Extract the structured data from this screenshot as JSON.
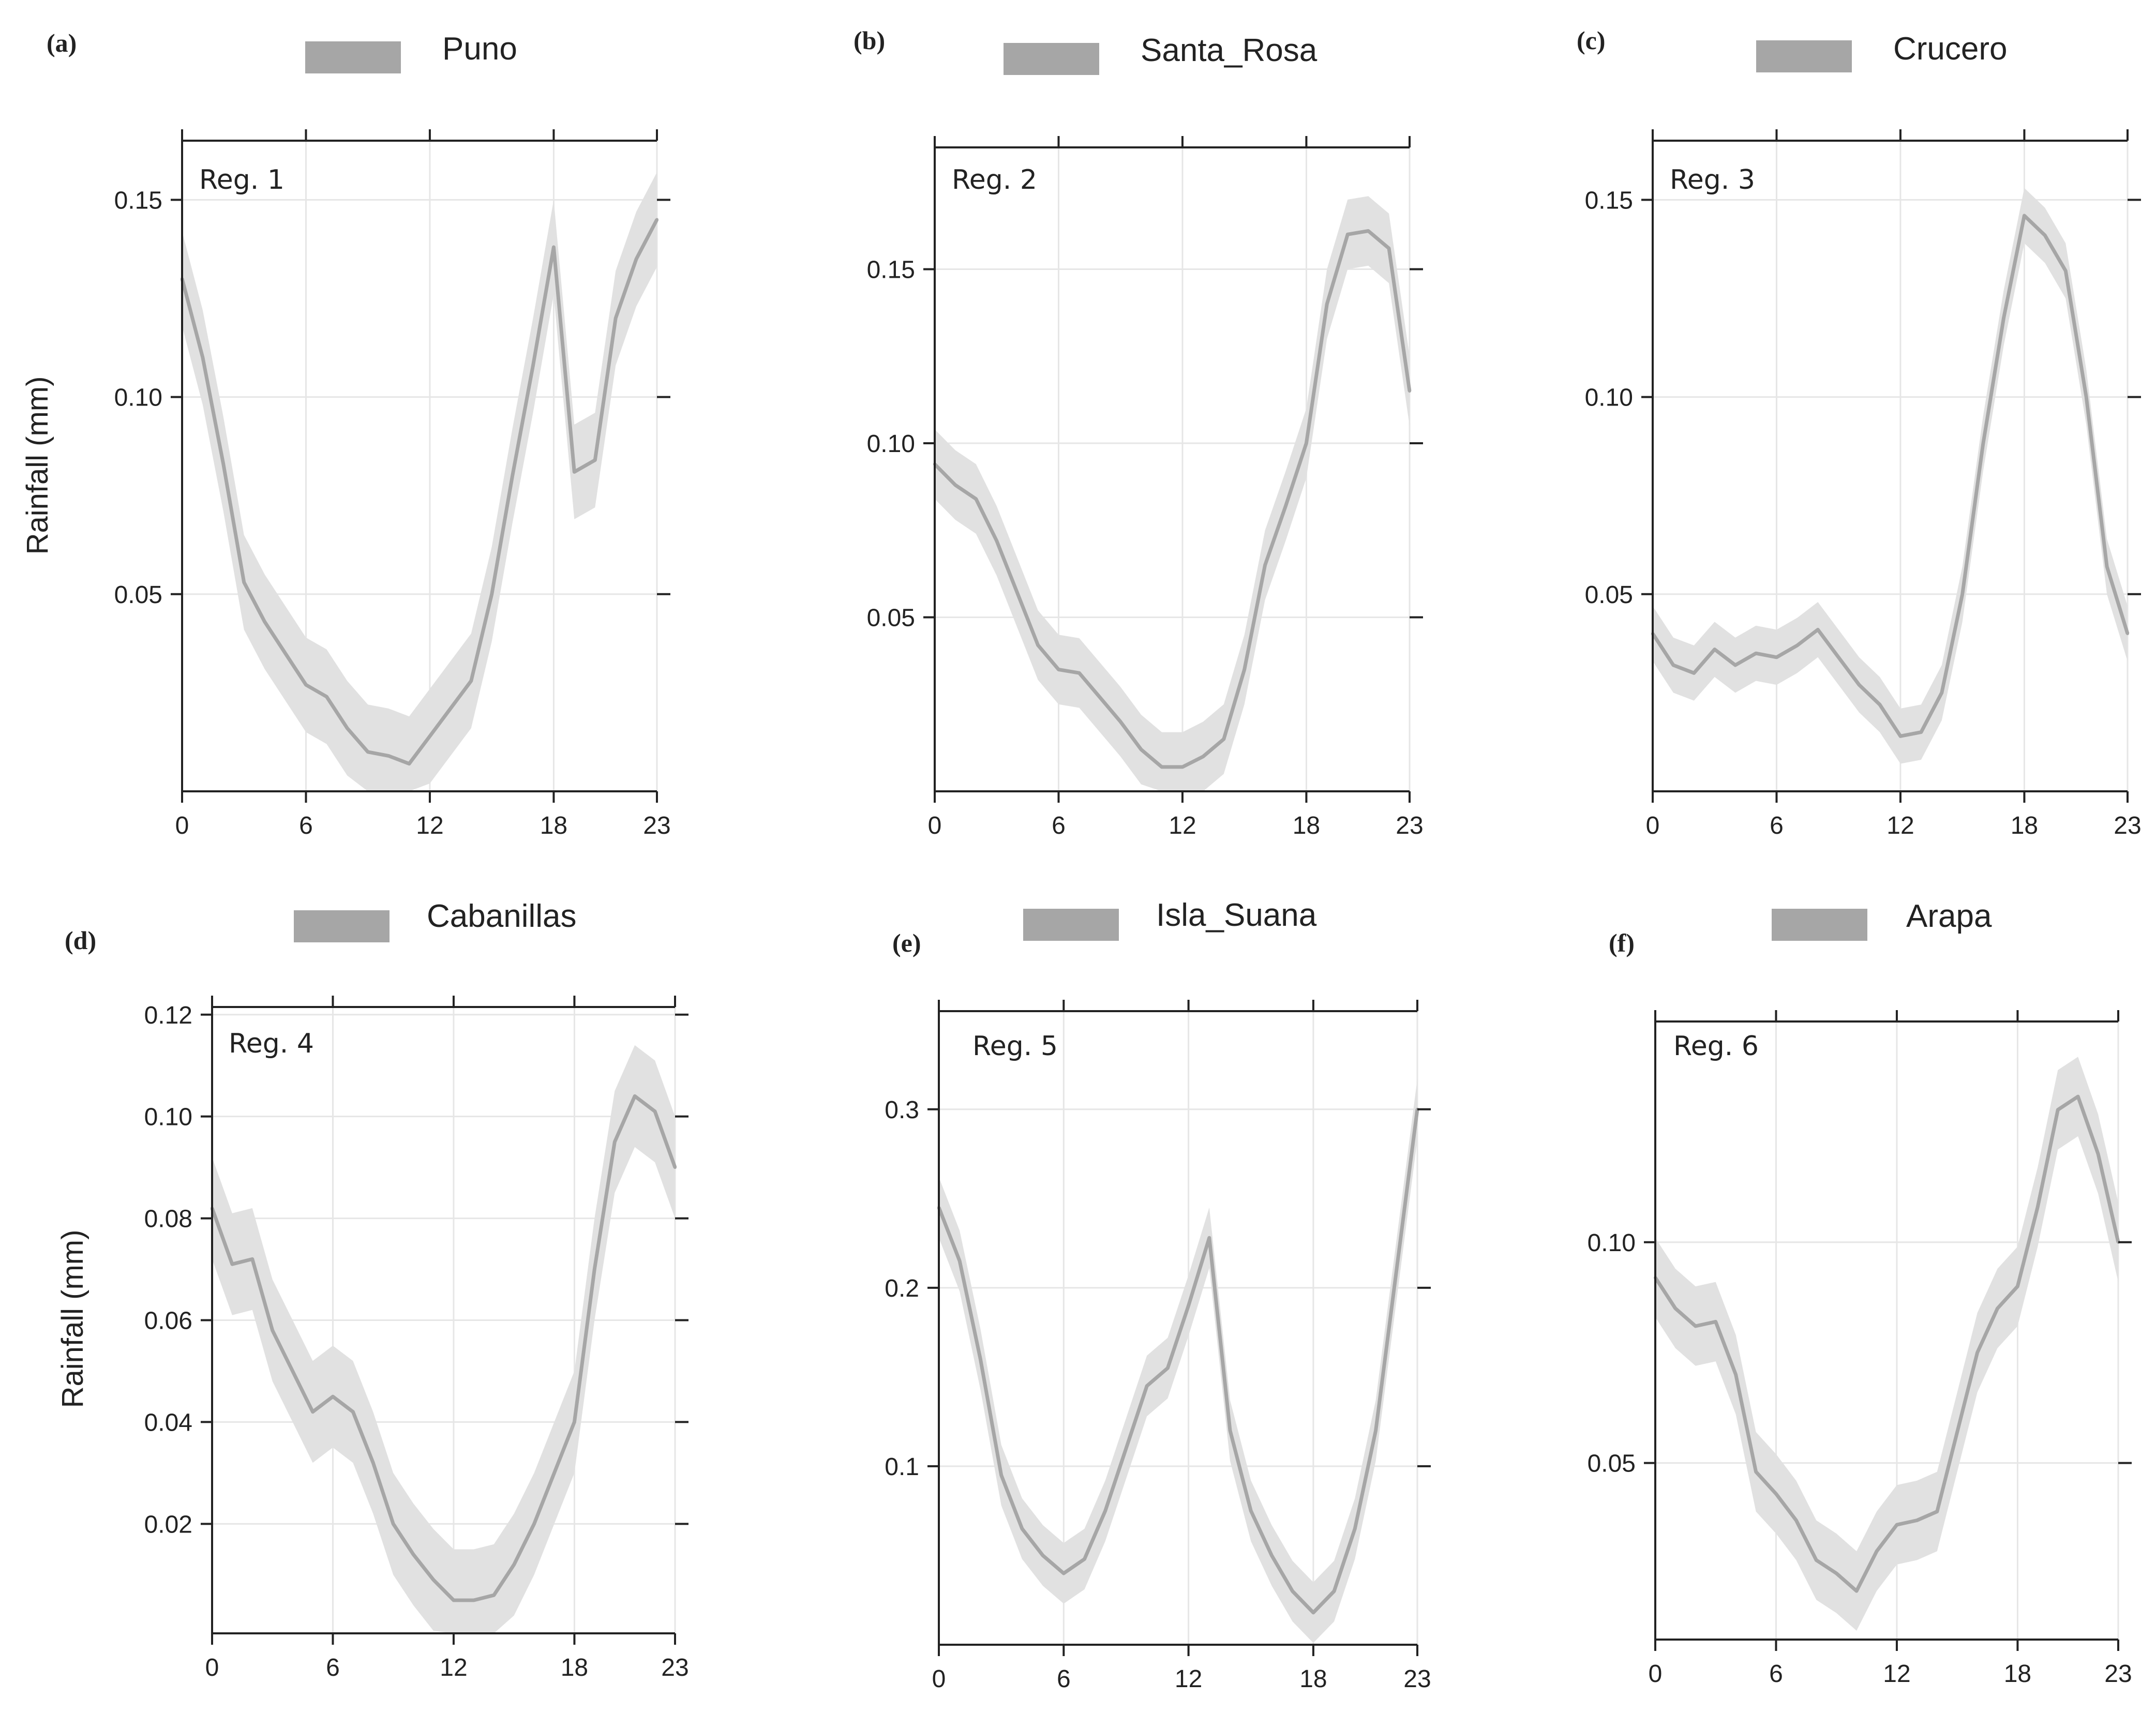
{
  "chart_data": [
    {
      "type": "line",
      "panel": "(a)",
      "legend": "Puno",
      "region_label": "Reg. 1",
      "ylabel": "Rainfall (mm)",
      "xlabel": "",
      "xlim": [
        0,
        23
      ],
      "ylim": [
        0,
        0.165
      ],
      "x_ticks": [
        0,
        6,
        12,
        18,
        23
      ],
      "y_ticks": [
        0.05,
        0.1,
        0.15
      ],
      "y_tick_labels": [
        "0.05",
        "0.10",
        "0.15"
      ],
      "x": [
        0,
        1,
        2,
        3,
        4,
        5,
        6,
        7,
        8,
        9,
        10,
        11,
        12,
        13,
        14,
        15,
        16,
        17,
        18,
        19,
        20,
        21,
        22,
        23
      ],
      "values": [
        0.13,
        0.11,
        0.083,
        0.053,
        0.043,
        0.035,
        0.027,
        0.024,
        0.016,
        0.01,
        0.009,
        0.007,
        0.014,
        0.021,
        0.028,
        0.05,
        0.08,
        0.108,
        0.138,
        0.081,
        0.084,
        0.12,
        0.135,
        0.145
      ],
      "band": 0.012,
      "colors": {
        "line": "#a6a6a6",
        "band": "#e1e1e1"
      }
    },
    {
      "type": "line",
      "panel": "(b)",
      "legend": "Santa_Rosa",
      "region_label": "Reg. 2",
      "ylabel": "",
      "xlabel": "",
      "xlim": [
        0,
        23
      ],
      "ylim": [
        0,
        0.185
      ],
      "x_ticks": [
        0,
        6,
        12,
        18,
        23
      ],
      "y_ticks": [
        0.05,
        0.1,
        0.15
      ],
      "y_tick_labels": [
        "0.05",
        "0.10",
        "0.15"
      ],
      "x": [
        0,
        1,
        2,
        3,
        4,
        5,
        6,
        7,
        8,
        9,
        10,
        11,
        12,
        13,
        14,
        15,
        16,
        17,
        18,
        19,
        20,
        21,
        22,
        23
      ],
      "values": [
        0.094,
        0.088,
        0.084,
        0.072,
        0.057,
        0.042,
        0.035,
        0.034,
        0.027,
        0.02,
        0.012,
        0.007,
        0.007,
        0.01,
        0.015,
        0.035,
        0.065,
        0.082,
        0.1,
        0.14,
        0.16,
        0.161,
        0.156,
        0.115
      ],
      "band": 0.01,
      "colors": {
        "line": "#a6a6a6",
        "band": "#e1e1e1"
      }
    },
    {
      "type": "line",
      "panel": "(c)",
      "legend": "Crucero",
      "region_label": "Reg. 3",
      "ylabel": "",
      "xlabel": "",
      "xlim": [
        0,
        23
      ],
      "ylim": [
        0,
        0.165
      ],
      "x_ticks": [
        0,
        6,
        12,
        18,
        23
      ],
      "y_ticks": [
        0.05,
        0.1,
        0.15
      ],
      "y_tick_labels": [
        "0.05",
        "0.10",
        "0.15"
      ],
      "x": [
        0,
        1,
        2,
        3,
        4,
        5,
        6,
        7,
        8,
        9,
        10,
        11,
        12,
        13,
        14,
        15,
        16,
        17,
        18,
        19,
        20,
        21,
        22,
        23
      ],
      "values": [
        0.04,
        0.032,
        0.03,
        0.036,
        0.032,
        0.035,
        0.034,
        0.037,
        0.041,
        0.034,
        0.027,
        0.022,
        0.014,
        0.015,
        0.025,
        0.05,
        0.088,
        0.12,
        0.146,
        0.141,
        0.132,
        0.1,
        0.057,
        0.04
      ],
      "band": 0.007,
      "colors": {
        "line": "#a6a6a6",
        "band": "#e1e1e1"
      }
    },
    {
      "type": "line",
      "panel": "(d)",
      "legend": "Cabanillas",
      "region_label": "Reg. 4",
      "ylabel": "Rainfall (mm)",
      "xlabel": "",
      "xlim": [
        0,
        23
      ],
      "ylim": [
        -0.0015,
        0.1215
      ],
      "x_ticks": [
        0,
        6,
        12,
        18,
        23
      ],
      "y_ticks": [
        0.02,
        0.04,
        0.06,
        0.08,
        0.1,
        0.12
      ],
      "y_tick_labels": [
        "0.02",
        "0.04",
        "0.06",
        "0.08",
        "0.10",
        "0.12"
      ],
      "x": [
        0,
        1,
        2,
        3,
        4,
        5,
        6,
        7,
        8,
        9,
        10,
        11,
        12,
        13,
        14,
        15,
        16,
        17,
        18,
        19,
        20,
        21,
        22,
        23
      ],
      "values": [
        0.082,
        0.071,
        0.072,
        0.058,
        0.05,
        0.042,
        0.045,
        0.042,
        0.032,
        0.02,
        0.014,
        0.009,
        0.005,
        0.005,
        0.006,
        0.012,
        0.02,
        0.03,
        0.04,
        0.07,
        0.095,
        0.104,
        0.101,
        0.09
      ],
      "band": 0.01,
      "colors": {
        "line": "#a6a6a6",
        "band": "#e1e1e1"
      }
    },
    {
      "type": "line",
      "panel": "(e)",
      "legend": "Isla_Suana",
      "region_label": "Reg. 5",
      "ylabel": "",
      "xlabel": "",
      "xlim": [
        0,
        23
      ],
      "ylim": [
        0,
        0.355
      ],
      "x_ticks": [
        0,
        6,
        12,
        18,
        23
      ],
      "y_ticks": [
        0.1,
        0.2,
        0.3
      ],
      "y_tick_labels": [
        "0.1",
        "0.2",
        "0.3"
      ],
      "x": [
        0,
        1,
        2,
        3,
        4,
        5,
        6,
        7,
        8,
        9,
        10,
        11,
        12,
        13,
        14,
        15,
        16,
        17,
        18,
        19,
        20,
        21,
        22,
        23
      ],
      "values": [
        0.245,
        0.215,
        0.16,
        0.095,
        0.065,
        0.05,
        0.04,
        0.048,
        0.075,
        0.11,
        0.145,
        0.155,
        0.19,
        0.228,
        0.12,
        0.075,
        0.05,
        0.03,
        0.018,
        0.03,
        0.065,
        0.12,
        0.21,
        0.3
      ],
      "band": 0.017,
      "colors": {
        "line": "#a6a6a6",
        "band": "#e1e1e1"
      }
    },
    {
      "type": "line",
      "panel": "(f)",
      "legend": "Arapa",
      "region_label": "Reg. 6",
      "ylabel": "",
      "xlabel": "",
      "xlim": [
        0,
        23
      ],
      "ylim": [
        0.01,
        0.15
      ],
      "x_ticks": [
        0,
        6,
        12,
        18,
        23
      ],
      "y_ticks": [
        0.05,
        0.1
      ],
      "y_tick_labels": [
        "0.05",
        "0.10"
      ],
      "x": [
        0,
        1,
        2,
        3,
        4,
        5,
        6,
        7,
        8,
        9,
        10,
        11,
        12,
        13,
        14,
        15,
        16,
        17,
        18,
        19,
        20,
        21,
        22,
        23
      ],
      "values": [
        0.092,
        0.085,
        0.081,
        0.082,
        0.07,
        0.048,
        0.043,
        0.037,
        0.028,
        0.025,
        0.021,
        0.03,
        0.036,
        0.037,
        0.039,
        0.057,
        0.075,
        0.085,
        0.09,
        0.108,
        0.13,
        0.133,
        0.12,
        0.1
      ],
      "band": 0.009,
      "colors": {
        "line": "#a6a6a6",
        "band": "#e1e1e1"
      }
    }
  ]
}
